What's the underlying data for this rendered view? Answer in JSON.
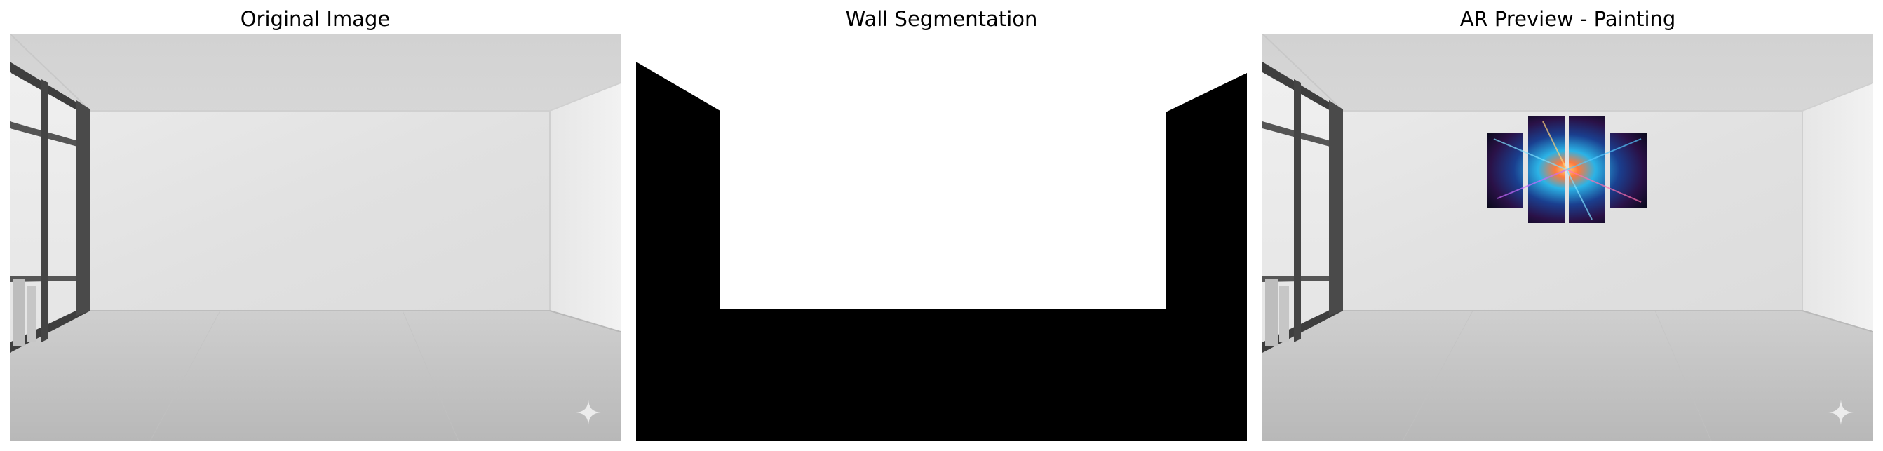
{
  "panels": [
    {
      "title": "Original Image"
    },
    {
      "title": "Wall Segmentation"
    },
    {
      "title": "AR Preview - Painting"
    }
  ],
  "colors": {
    "wall_light": "#e3e3e3",
    "floor": "#c4c4c4",
    "mask_white": "#ffffff",
    "mask_black": "#000000"
  },
  "icons": {
    "watermark": "sparkle-icon"
  }
}
